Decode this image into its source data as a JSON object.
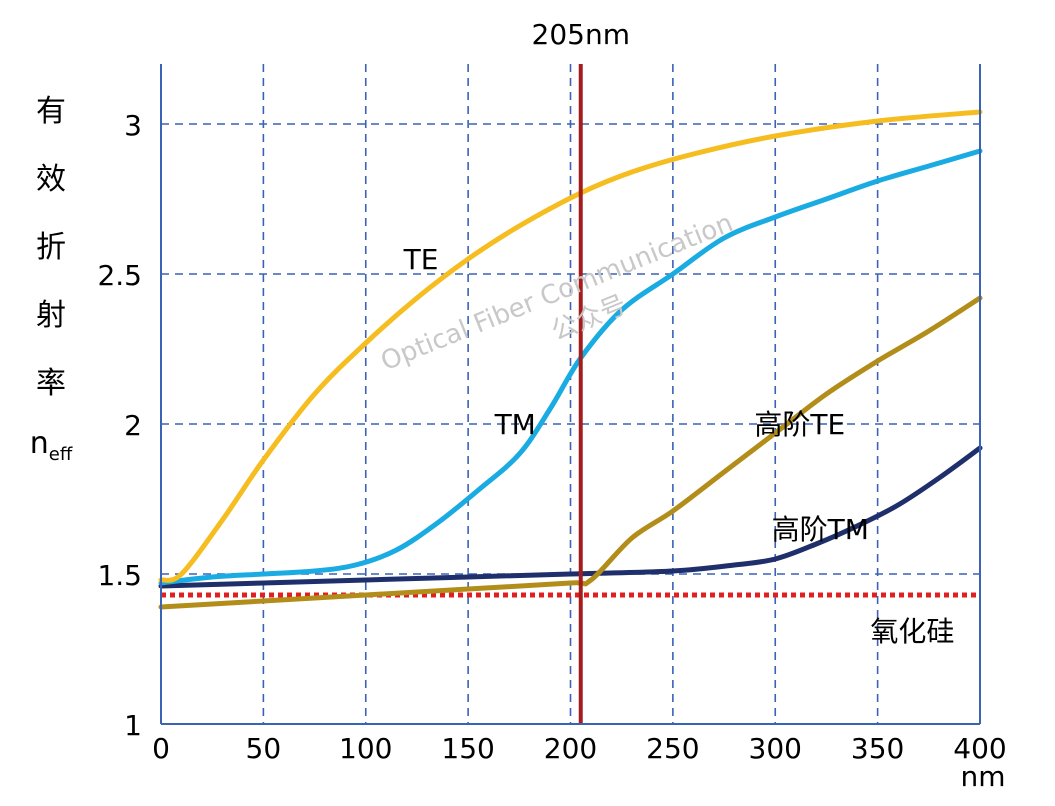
{
  "chart_data": {
    "type": "line",
    "title": "205nm",
    "xlabel": "nm",
    "ylabel_chars": [
      "有",
      "效",
      "折",
      "射",
      "率"
    ],
    "ylabel_sym": "n",
    "ylabel_sub": "eff",
    "xlim": [
      0,
      400
    ],
    "ylim": [
      1,
      3.2
    ],
    "x_ticks": [
      "0",
      "50",
      "100",
      "150",
      "200",
      "250",
      "300",
      "350",
      "400"
    ],
    "y_ticks": [
      "1",
      "1.5",
      "2",
      "2.5",
      "3"
    ],
    "x_grid": [
      0,
      50,
      100,
      150,
      200,
      250,
      300,
      350,
      400
    ],
    "y_grid": [
      1.5,
      2,
      2.5,
      3
    ],
    "grid": true,
    "series": [
      {
        "name": "TE",
        "color": "#f5bd1f",
        "x": [
          0,
          10,
          30,
          50,
          75,
          100,
          125,
          150,
          175,
          205,
          230,
          260,
          300,
          350,
          400
        ],
        "y": [
          1.48,
          1.5,
          1.68,
          1.88,
          2.1,
          2.27,
          2.42,
          2.55,
          2.66,
          2.77,
          2.84,
          2.9,
          2.96,
          3.01,
          3.04
        ]
      },
      {
        "name": "TM",
        "color": "#19abe1",
        "x": [
          0,
          25,
          50,
          75,
          95,
          115,
          135,
          155,
          175,
          190,
          205,
          225,
          250,
          275,
          300,
          325,
          350,
          375,
          400
        ],
        "y": [
          1.47,
          1.49,
          1.5,
          1.51,
          1.53,
          1.58,
          1.67,
          1.78,
          1.9,
          2.05,
          2.22,
          2.38,
          2.5,
          2.62,
          2.69,
          2.75,
          2.81,
          2.86,
          2.91
        ]
      },
      {
        "name": "高阶TE",
        "color": "#b38d1a",
        "x": [
          0,
          50,
          100,
          150,
          200,
          210,
          230,
          250,
          275,
          300,
          325,
          350,
          375,
          400
        ],
        "y": [
          1.39,
          1.41,
          1.43,
          1.45,
          1.47,
          1.48,
          1.62,
          1.71,
          1.84,
          1.97,
          2.1,
          2.21,
          2.31,
          2.42
        ]
      },
      {
        "name": "高阶TM",
        "color": "#1e2f6b",
        "x": [
          0,
          50,
          100,
          150,
          200,
          250,
          280,
          300,
          320,
          340,
          360,
          380,
          400
        ],
        "y": [
          1.46,
          1.47,
          1.48,
          1.49,
          1.5,
          1.51,
          1.53,
          1.55,
          1.6,
          1.66,
          1.73,
          1.82,
          1.92
        ]
      }
    ],
    "reference_lines": [
      {
        "label": "氧化硅",
        "value": 1.43,
        "color": "#e02020",
        "style": "dotted"
      }
    ],
    "marker_line": {
      "x": 205,
      "color": "#a31d1d"
    },
    "annotations": [
      {
        "text": "TE",
        "x": 127,
        "y": 2.55
      },
      {
        "text": "TM",
        "x": 173,
        "y": 2.0
      },
      {
        "text": "高阶TE",
        "x": 312,
        "y": 2.0
      },
      {
        "text": "高阶TM",
        "x": 322,
        "y": 1.65
      },
      {
        "text": "氧化硅",
        "x": 367,
        "y": 1.31
      }
    ],
    "watermark": [
      "Optical Fiber Communication",
      "公众号"
    ]
  }
}
